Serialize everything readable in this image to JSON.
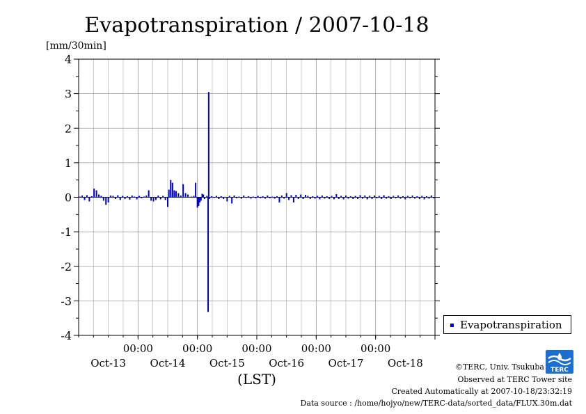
{
  "chart_data": {
    "type": "bar",
    "title": "Evapotranspiration / 2007-10-18",
    "unit_label": "[mm/30min]",
    "xlabel": "(LST)",
    "ylim": [
      -4,
      4
    ],
    "y_ticks": [
      "4",
      "3",
      "2",
      "1",
      "0",
      "-1",
      "-2",
      "-3",
      "-4"
    ],
    "x_range_days": [
      12.5,
      18.5
    ],
    "x_ticks": [
      {
        "day": 13.5,
        "time": "00:00",
        "date": "Oct-13"
      },
      {
        "day": 14.5,
        "time": "00:00",
        "date": "Oct-14"
      },
      {
        "day": 15.5,
        "time": "00:00",
        "date": "Oct-15"
      },
      {
        "day": 16.5,
        "time": "00:00",
        "date": "Oct-16"
      },
      {
        "day": 17.5,
        "time": "00:00",
        "date": "Oct-17"
      },
      {
        "day": 18.5,
        "time": "00:00",
        "date": "Oct-18"
      }
    ],
    "grid": true,
    "legend_position": "bottom-right outside",
    "series": [
      {
        "name": "Evapotranspiration",
        "color": "#0000cc",
        "points": [
          [
            12.52,
            0.02
          ],
          [
            12.56,
            0.05
          ],
          [
            12.6,
            -0.08
          ],
          [
            12.64,
            0.06
          ],
          [
            12.68,
            -0.12
          ],
          [
            12.72,
            0.03
          ],
          [
            12.76,
            0.25
          ],
          [
            12.8,
            0.2
          ],
          [
            12.84,
            0.08
          ],
          [
            12.88,
            0.04
          ],
          [
            12.92,
            -0.1
          ],
          [
            12.96,
            -0.22
          ],
          [
            13.0,
            -0.15
          ],
          [
            13.04,
            0.05
          ],
          [
            13.08,
            0.04
          ],
          [
            13.12,
            -0.05
          ],
          [
            13.16,
            0.06
          ],
          [
            13.2,
            -0.08
          ],
          [
            13.24,
            0.04
          ],
          [
            13.28,
            -0.05
          ],
          [
            13.32,
            0.03
          ],
          [
            13.36,
            -0.07
          ],
          [
            13.4,
            0.05
          ],
          [
            13.44,
            0.02
          ],
          [
            13.48,
            -0.06
          ],
          [
            13.52,
            0.04
          ],
          [
            13.56,
            -0.03
          ],
          [
            13.6,
            0.02
          ],
          [
            13.64,
            0.05
          ],
          [
            13.68,
            0.2
          ],
          [
            13.72,
            -0.1
          ],
          [
            13.76,
            -0.12
          ],
          [
            13.8,
            -0.08
          ],
          [
            13.84,
            0.05
          ],
          [
            13.88,
            -0.06
          ],
          [
            13.92,
            0.04
          ],
          [
            13.96,
            -0.08
          ],
          [
            14.0,
            -0.28
          ],
          [
            14.02,
            0.22
          ],
          [
            14.05,
            0.5
          ],
          [
            14.08,
            0.42
          ],
          [
            14.11,
            0.2
          ],
          [
            14.14,
            0.18
          ],
          [
            14.18,
            0.12
          ],
          [
            14.22,
            0.05
          ],
          [
            14.26,
            0.38
          ],
          [
            14.3,
            0.12
          ],
          [
            14.34,
            0.08
          ],
          [
            14.4,
            0.02
          ],
          [
            14.44,
            0.04
          ],
          [
            14.47,
            0.42
          ],
          [
            14.5,
            -0.3
          ],
          [
            14.52,
            -0.25
          ],
          [
            14.54,
            -0.15
          ],
          [
            14.56,
            -0.1
          ],
          [
            14.58,
            0.1
          ],
          [
            14.6,
            0.08
          ],
          [
            14.62,
            -0.05
          ],
          [
            14.66,
            0.04
          ],
          [
            14.7,
            -0.05
          ],
          [
            14.74,
            0.03
          ],
          [
            14.78,
            -0.02
          ],
          [
            14.82,
            0.04
          ],
          [
            14.86,
            -0.05
          ],
          [
            14.9,
            0.03
          ],
          [
            14.94,
            -0.05
          ],
          [
            15.0,
            -0.12
          ],
          [
            15.04,
            0.04
          ],
          [
            15.08,
            -0.18
          ],
          [
            15.12,
            0.05
          ],
          [
            15.16,
            -0.03
          ],
          [
            15.2,
            0.02
          ],
          [
            15.24,
            -0.04
          ],
          [
            15.28,
            0.05
          ],
          [
            15.32,
            -0.02
          ],
          [
            15.36,
            0.03
          ],
          [
            15.4,
            -0.04
          ],
          [
            15.44,
            0.02
          ],
          [
            15.48,
            -0.03
          ],
          [
            15.52,
            0.04
          ],
          [
            15.56,
            -0.03
          ],
          [
            15.6,
            0.03
          ],
          [
            15.64,
            -0.04
          ],
          [
            15.68,
            0.05
          ],
          [
            15.72,
            -0.03
          ],
          [
            15.76,
            0.02
          ],
          [
            15.8,
            -0.04
          ],
          [
            15.84,
            0.03
          ],
          [
            15.88,
            -0.15
          ],
          [
            15.92,
            0.05
          ],
          [
            15.96,
            -0.04
          ],
          [
            16.0,
            0.12
          ],
          [
            16.04,
            -0.08
          ],
          [
            16.08,
            0.06
          ],
          [
            16.12,
            -0.15
          ],
          [
            16.16,
            0.07
          ],
          [
            16.2,
            -0.05
          ],
          [
            16.24,
            0.08
          ],
          [
            16.28,
            -0.05
          ],
          [
            16.32,
            0.07
          ],
          [
            16.36,
            0.04
          ],
          [
            16.4,
            -0.05
          ],
          [
            16.44,
            0.03
          ],
          [
            16.48,
            -0.04
          ],
          [
            16.52,
            0.04
          ],
          [
            16.56,
            -0.06
          ],
          [
            16.6,
            0.05
          ],
          [
            16.64,
            -0.04
          ],
          [
            16.68,
            0.03
          ],
          [
            16.72,
            -0.05
          ],
          [
            16.76,
            0.04
          ],
          [
            16.8,
            -0.06
          ],
          [
            16.84,
            0.09
          ],
          [
            16.88,
            -0.05
          ],
          [
            16.92,
            0.04
          ],
          [
            16.96,
            -0.06
          ],
          [
            17.0,
            0.05
          ],
          [
            17.04,
            -0.04
          ],
          [
            17.08,
            0.03
          ],
          [
            17.12,
            -0.05
          ],
          [
            17.16,
            0.04
          ],
          [
            17.2,
            -0.05
          ],
          [
            17.24,
            0.06
          ],
          [
            17.28,
            -0.04
          ],
          [
            17.32,
            0.05
          ],
          [
            17.36,
            -0.06
          ],
          [
            17.4,
            0.04
          ],
          [
            17.44,
            -0.05
          ],
          [
            17.48,
            0.05
          ],
          [
            17.52,
            -0.03
          ],
          [
            17.56,
            0.04
          ],
          [
            17.6,
            -0.05
          ],
          [
            17.64,
            0.06
          ],
          [
            17.68,
            -0.04
          ],
          [
            17.72,
            0.03
          ],
          [
            17.76,
            -0.05
          ],
          [
            17.8,
            0.04
          ],
          [
            17.84,
            -0.03
          ],
          [
            17.88,
            0.05
          ],
          [
            17.92,
            -0.04
          ],
          [
            17.96,
            0.03
          ],
          [
            18.0,
            -0.06
          ],
          [
            18.04,
            0.04
          ],
          [
            18.08,
            -0.03
          ],
          [
            18.12,
            0.05
          ],
          [
            18.16,
            -0.04
          ],
          [
            18.2,
            0.03
          ],
          [
            18.24,
            -0.05
          ],
          [
            18.28,
            0.04
          ],
          [
            18.32,
            -0.06
          ],
          [
            18.36,
            0.03
          ],
          [
            18.4,
            -0.04
          ],
          [
            18.44,
            0.05
          ],
          [
            18.48,
            -0.03
          ]
        ],
        "spike_points": [
          [
            14.69,
            3.05
          ],
          [
            14.68,
            -3.32
          ]
        ]
      }
    ]
  },
  "legend": {
    "label": "Evapotranspiration"
  },
  "credits": {
    "copyright": "©TERC, Univ. Tsukuba",
    "site": "Observed at TERC Tower site",
    "created": "Created Automatically at 2007-10-18/23:32:19",
    "source": "Data source : /home/hojyo/new/TERC-data/sorted_data/FLUX.30m.dat"
  },
  "logo": {
    "name": "terc-logo",
    "text": "TERC",
    "color": "#1a6fd0"
  }
}
